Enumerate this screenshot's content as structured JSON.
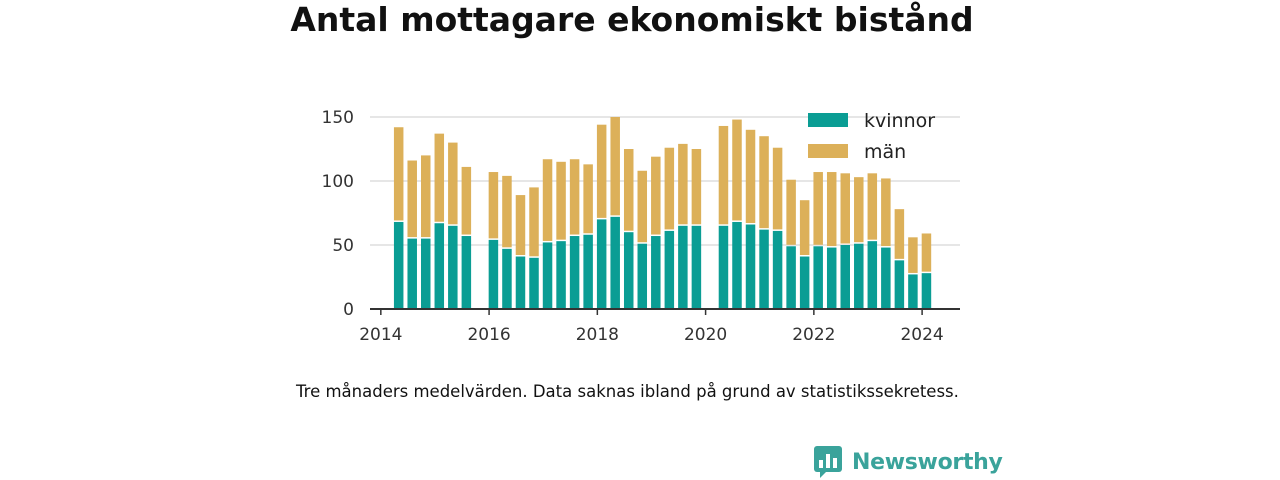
{
  "title": "Antal mottagare ekonomiskt bistånd",
  "note": "Tre månaders medelvärden. Data saknas ibland på grund av statistikssekretess.",
  "brand": {
    "name": "Newsworthy",
    "icon": "bar-chart-icon",
    "color": "#3aa39b"
  },
  "colors": {
    "kvinnor": "#0a9d94",
    "man": "#dcb059",
    "grid": "#dddddd",
    "axis": "#333333"
  },
  "chart_data": {
    "type": "bar",
    "stacked": true,
    "title": "Antal mottagare ekonomiskt bistånd",
    "xlabel": "",
    "ylabel": "",
    "ylim": [
      0,
      160
    ],
    "yticks": [
      0,
      50,
      100,
      150
    ],
    "xlim": [
      2013.8,
      2024.7
    ],
    "xticks": [
      2014,
      2016,
      2018,
      2020,
      2022,
      2024
    ],
    "grid": true,
    "legend": "top-right",
    "x": [
      2014.33,
      2014.58,
      2014.83,
      2015.08,
      2015.33,
      2015.58,
      2016.08,
      2016.33,
      2016.58,
      2016.83,
      2017.08,
      2017.33,
      2017.58,
      2017.83,
      2018.08,
      2018.33,
      2018.58,
      2018.83,
      2019.08,
      2019.33,
      2019.58,
      2019.83,
      2020.33,
      2020.58,
      2020.83,
      2021.08,
      2021.33,
      2021.58,
      2021.83,
      2022.08,
      2022.33,
      2022.58,
      2022.83,
      2023.08,
      2023.33,
      2023.58,
      2023.83,
      2024.08
    ],
    "series": [
      {
        "name": "kvinnor",
        "values": [
          68,
          55,
          55,
          67,
          65,
          57,
          54,
          47,
          41,
          40,
          52,
          53,
          57,
          58,
          70,
          72,
          60,
          51,
          57,
          61,
          65,
          65,
          65,
          68,
          66,
          62,
          61,
          49,
          41,
          49,
          48,
          50,
          51,
          53,
          48,
          38,
          27,
          28
        ]
      },
      {
        "name": "män",
        "values": [
          74,
          61,
          65,
          70,
          65,
          54,
          53,
          57,
          48,
          55,
          65,
          62,
          60,
          55,
          74,
          78,
          65,
          57,
          62,
          65,
          64,
          60,
          78,
          80,
          74,
          73,
          65,
          52,
          44,
          58,
          59,
          56,
          52,
          53,
          54,
          40,
          29,
          31
        ]
      }
    ]
  }
}
